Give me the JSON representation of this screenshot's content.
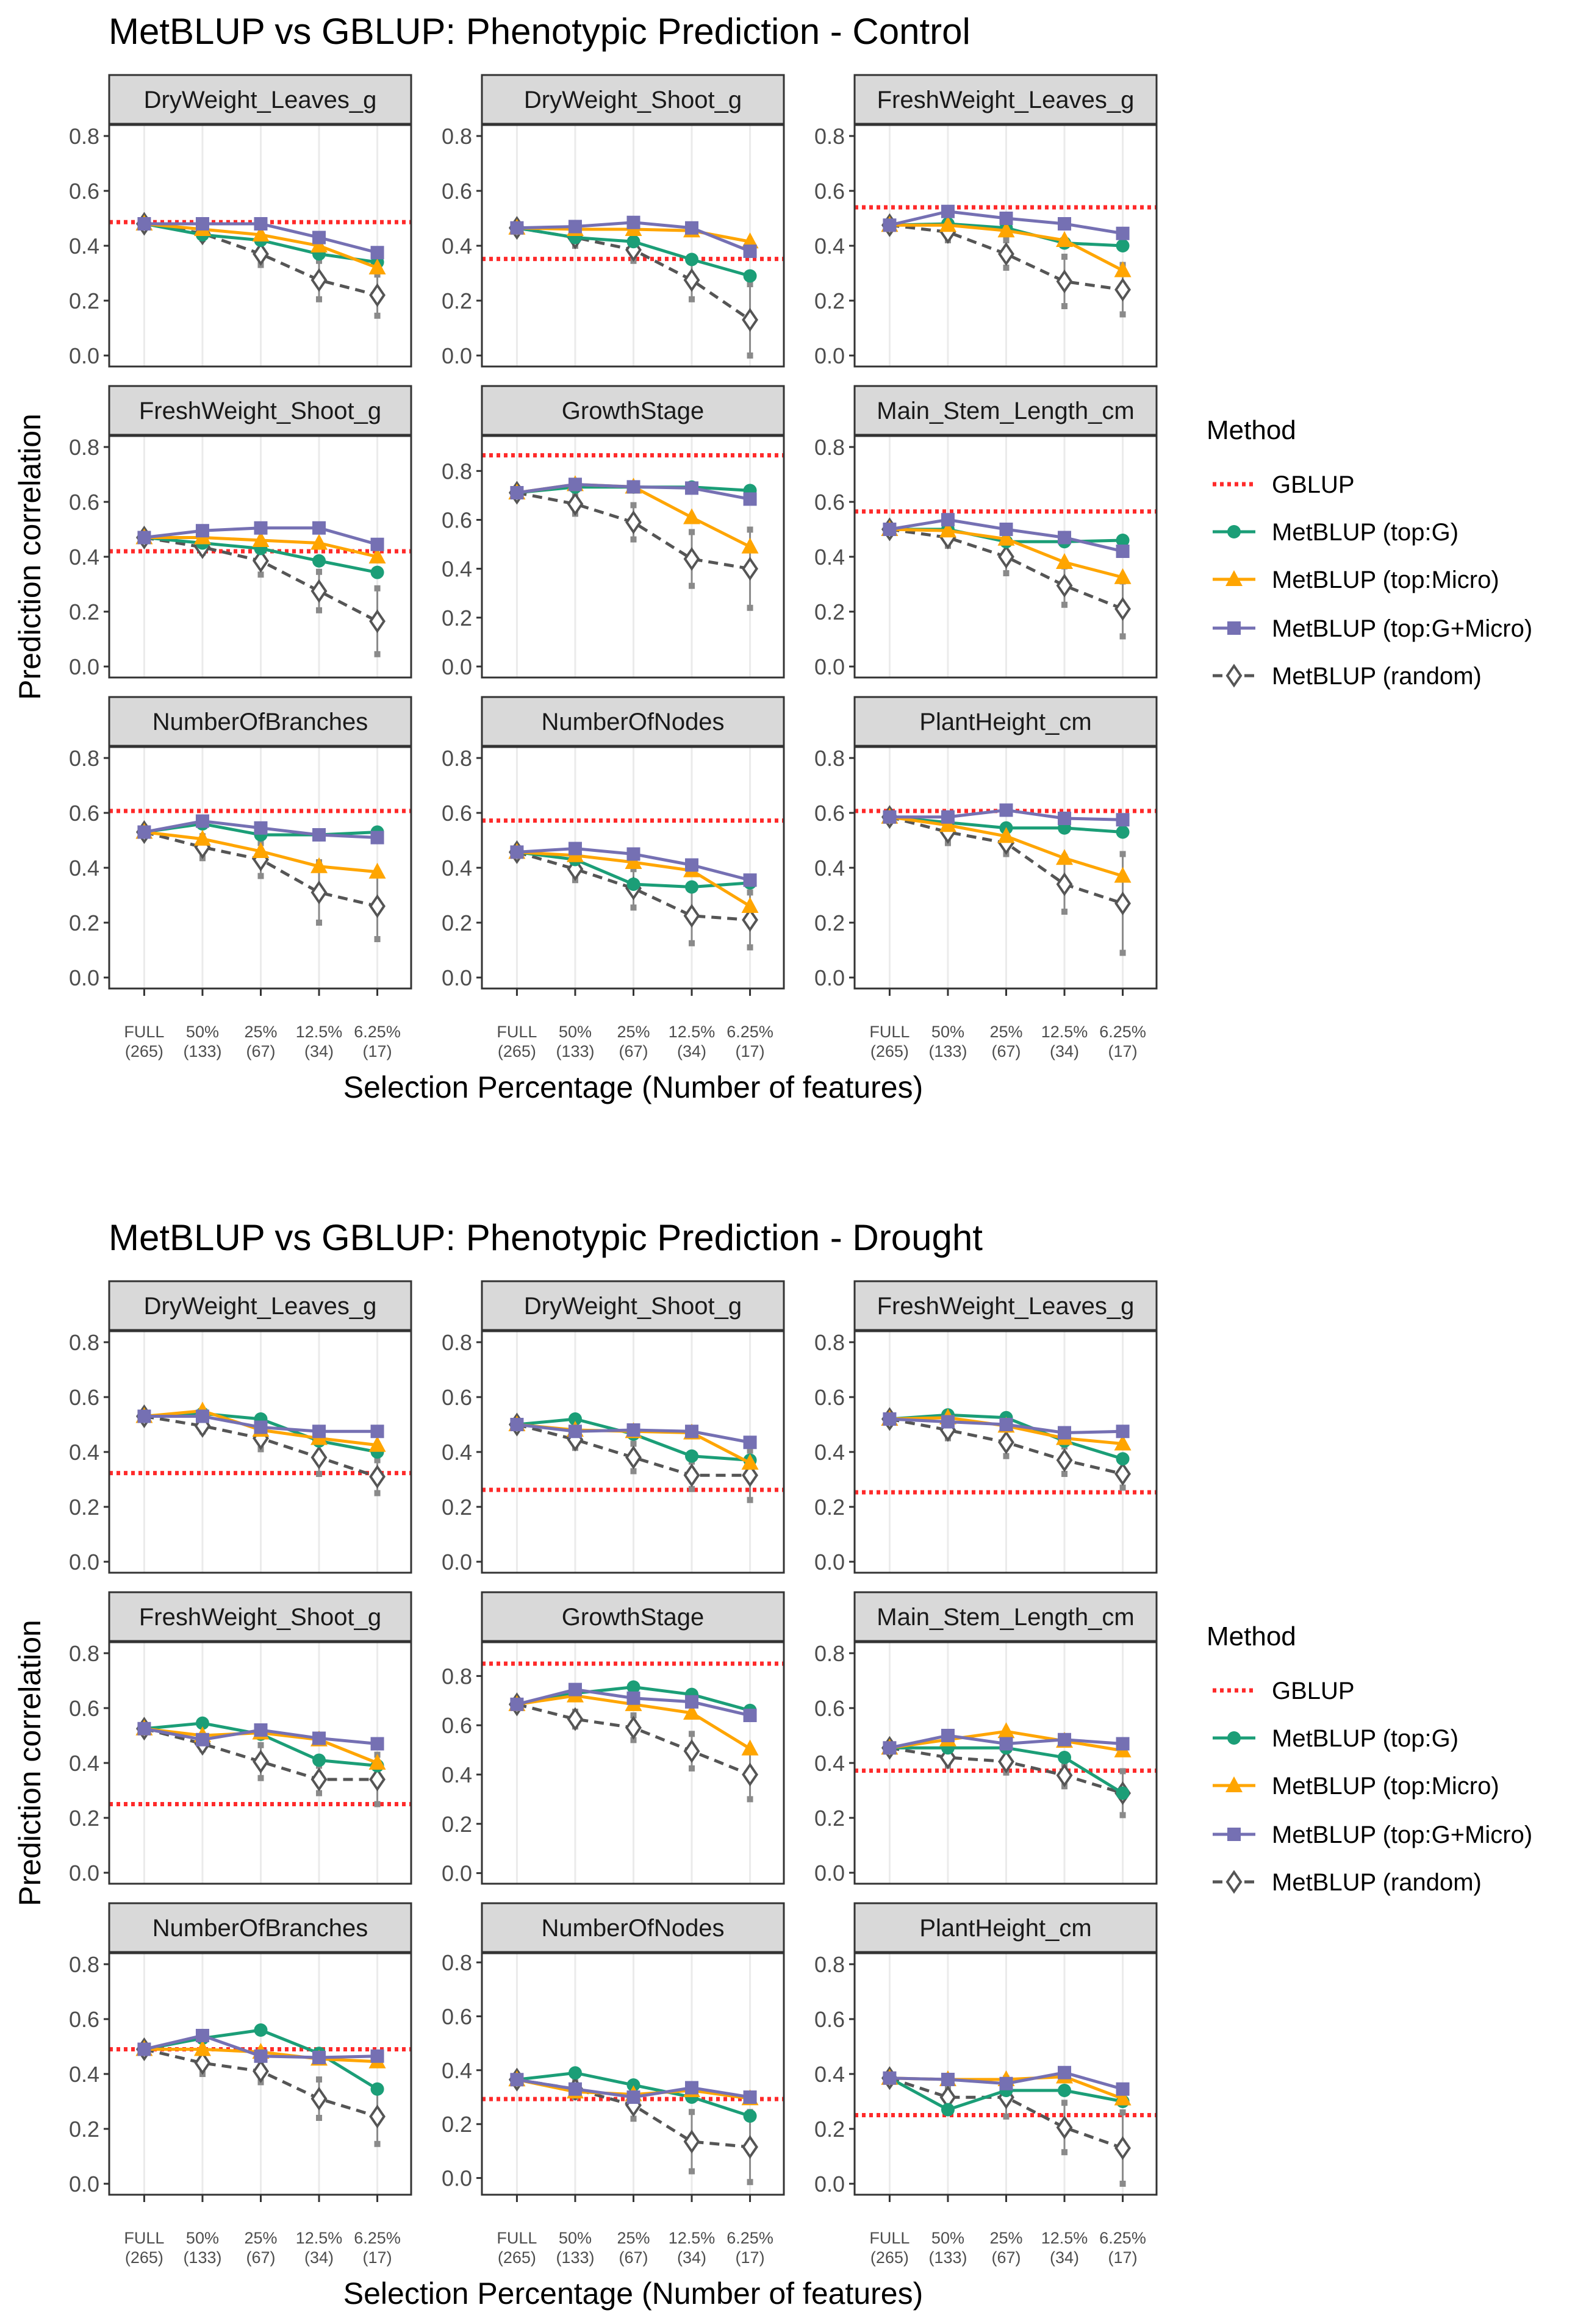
{
  "chart_data": [
    {
      "type": "line",
      "title": "MetBLUP vs GBLUP: Phenotypic Prediction - Control",
      "xlabel": "Selection Percentage (Number of features)",
      "ylabel": "Prediction correlation",
      "categories": [
        "FULL",
        "50%",
        "25%",
        "12.5%",
        "6.25%"
      ],
      "category_counts": [
        "(265)",
        "(133)",
        "(67)",
        "(34)",
        "(17)"
      ],
      "yticks": [
        0,
        0.2,
        0.4,
        0.6,
        0.8
      ],
      "ytick_labels": [
        "0.0",
        "0.2",
        "0.4",
        "0.6",
        "0.8"
      ],
      "grid": "vertical major only",
      "legend_title": "Method",
      "legend_position": "right",
      "series": [
        {
          "name": "GBLUP",
          "color": "#ff2a2a",
          "style": "dotted horizontal line"
        },
        {
          "name": "MetBLUP (top:G)",
          "color": "#1b9e77",
          "marker": "circle"
        },
        {
          "name": "MetBLUP (top:Micro)",
          "color": "#ffa500",
          "marker": "triangle"
        },
        {
          "name": "MetBLUP (top:G+Micro)",
          "color": "#7570b3",
          "marker": "square"
        },
        {
          "name": "MetBLUP (random)",
          "color": "#555555",
          "marker": "open diamond",
          "line": "dashed"
        }
      ],
      "panels": [
        {
          "name": "DryWeight_Leaves_g",
          "ylim": [
            -0.04,
            0.84
          ],
          "gblup": 0.486,
          "values": [
            [
              0.48,
              0.44,
              0.42,
              0.37,
              0.34
            ],
            [
              0.48,
              0.46,
              0.44,
              0.4,
              0.32
            ],
            [
              0.48,
              0.48,
              0.48,
              0.43,
              0.375
            ],
            [
              0.48,
              0.445,
              0.37,
              0.275,
              0.22
            ]
          ],
          "random_err": [
            0,
            0.02,
            0.04,
            0.07,
            0.075
          ]
        },
        {
          "name": "DryWeight_Shoot_g",
          "ylim": [
            -0.04,
            0.84
          ],
          "gblup": 0.352,
          "values": [
            [
              0.465,
              0.43,
              0.415,
              0.35,
              0.29
            ],
            [
              0.465,
              0.46,
              0.46,
              0.455,
              0.415
            ],
            [
              0.465,
              0.47,
              0.485,
              0.465,
              0.38
            ],
            [
              0.465,
              0.43,
              0.385,
              0.275,
              0.13
            ]
          ],
          "random_err": [
            0,
            0.03,
            0.04,
            0.07,
            0.13
          ]
        },
        {
          "name": "FreshWeight_Leaves_g",
          "ylim": [
            -0.04,
            0.84
          ],
          "gblup": 0.54,
          "values": [
            [
              0.475,
              0.48,
              0.465,
              0.41,
              0.4
            ],
            [
              0.475,
              0.475,
              0.455,
              0.42,
              0.31
            ],
            [
              0.475,
              0.525,
              0.5,
              0.48,
              0.445
            ],
            [
              0.475,
              0.45,
              0.37,
              0.27,
              0.24
            ]
          ],
          "random_err": [
            0,
            0.03,
            0.05,
            0.09,
            0.09
          ]
        },
        {
          "name": "FreshWeight_Shoot_g",
          "ylim": [
            -0.04,
            0.84
          ],
          "gblup": 0.42,
          "values": [
            [
              0.47,
              0.45,
              0.43,
              0.385,
              0.343
            ],
            [
              0.47,
              0.47,
              0.46,
              0.45,
              0.4
            ],
            [
              0.47,
              0.495,
              0.505,
              0.505,
              0.445
            ],
            [
              0.47,
              0.435,
              0.385,
              0.275,
              0.165
            ]
          ],
          "random_err": [
            0,
            0.02,
            0.05,
            0.07,
            0.12
          ]
        },
        {
          "name": "GrowthStage",
          "ylim": [
            -0.045,
            0.943
          ],
          "gblup": 0.864,
          "values": [
            [
              0.711,
              0.734,
              0.734,
              0.734,
              0.72
            ],
            [
              0.711,
              0.745,
              0.735,
              0.61,
              0.49
            ],
            [
              0.711,
              0.745,
              0.735,
              0.73,
              0.685
            ],
            [
              0.711,
              0.665,
              0.59,
              0.44,
              0.4
            ]
          ],
          "random_err": [
            0,
            0.04,
            0.07,
            0.11,
            0.16
          ]
        },
        {
          "name": "Main_Stem_Length_cm",
          "ylim": [
            -0.04,
            0.84
          ],
          "gblup": 0.565,
          "values": [
            [
              0.5,
              0.5,
              0.455,
              0.455,
              0.46
            ],
            [
              0.5,
              0.495,
              0.465,
              0.38,
              0.325
            ],
            [
              0.5,
              0.535,
              0.5,
              0.47,
              0.42
            ],
            [
              0.5,
              0.47,
              0.4,
              0.295,
              0.21
            ]
          ],
          "random_err": [
            0,
            0.03,
            0.06,
            0.07,
            0.1
          ]
        },
        {
          "name": "NumberOfBranches",
          "ylim": [
            -0.04,
            0.84
          ],
          "gblup": 0.607,
          "values": [
            [
              0.53,
              0.56,
              0.52,
              0.52,
              0.53
            ],
            [
              0.53,
              0.505,
              0.46,
              0.405,
              0.385
            ],
            [
              0.53,
              0.57,
              0.545,
              0.52,
              0.51
            ],
            [
              0.53,
              0.475,
              0.43,
              0.31,
              0.26
            ]
          ],
          "random_err": [
            0,
            0.04,
            0.06,
            0.11,
            0.12
          ]
        },
        {
          "name": "NumberOfNodes",
          "ylim": [
            -0.04,
            0.84
          ],
          "gblup": 0.572,
          "values": [
            [
              0.457,
              0.43,
              0.34,
              0.33,
              0.345
            ],
            [
              0.457,
              0.445,
              0.42,
              0.39,
              0.26
            ],
            [
              0.457,
              0.47,
              0.45,
              0.41,
              0.355
            ],
            [
              0.457,
              0.395,
              0.325,
              0.225,
              0.21
            ]
          ],
          "random_err": [
            0,
            0.04,
            0.07,
            0.1,
            0.1
          ]
        },
        {
          "name": "PlantHeight_cm",
          "ylim": [
            -0.04,
            0.84
          ],
          "gblup": 0.607,
          "values": [
            [
              0.585,
              0.565,
              0.545,
              0.545,
              0.53
            ],
            [
              0.585,
              0.555,
              0.515,
              0.435,
              0.37
            ],
            [
              0.585,
              0.585,
              0.61,
              0.58,
              0.575
            ],
            [
              0.585,
              0.53,
              0.49,
              0.34,
              0.27
            ]
          ],
          "random_err": [
            0,
            0.04,
            0.04,
            0.1,
            0.18
          ]
        }
      ]
    },
    {
      "type": "line",
      "title": "MetBLUP vs GBLUP: Phenotypic Prediction - Drought",
      "xlabel": "Selection Percentage (Number of features)",
      "ylabel": "Prediction correlation",
      "categories": [
        "FULL",
        "50%",
        "25%",
        "12.5%",
        "6.25%"
      ],
      "category_counts": [
        "(265)",
        "(133)",
        "(67)",
        "(34)",
        "(17)"
      ],
      "yticks": [
        0,
        0.2,
        0.4,
        0.6,
        0.8
      ],
      "ytick_labels": [
        "0.0",
        "0.2",
        "0.4",
        "0.6",
        "0.8"
      ],
      "grid": "vertical major only",
      "legend_title": "Method",
      "legend_position": "right",
      "series": [
        {
          "name": "GBLUP",
          "color": "#ff2a2a",
          "style": "dotted horizontal line"
        },
        {
          "name": "MetBLUP (top:G)",
          "color": "#1b9e77",
          "marker": "circle"
        },
        {
          "name": "MetBLUP (top:Micro)",
          "color": "#ffa500",
          "marker": "triangle"
        },
        {
          "name": "MetBLUP (top:G+Micro)",
          "color": "#7570b3",
          "marker": "square"
        },
        {
          "name": "MetBLUP (random)",
          "color": "#555555",
          "marker": "open diamond",
          "line": "dashed"
        }
      ],
      "panels": [
        {
          "name": "DryWeight_Leaves_g",
          "ylim": [
            -0.04,
            0.84
          ],
          "gblup": 0.323,
          "values": [
            [
              0.53,
              0.54,
              0.52,
              0.44,
              0.4
            ],
            [
              0.53,
              0.55,
              0.48,
              0.45,
              0.425
            ],
            [
              0.53,
              0.53,
              0.49,
              0.475,
              0.475
            ],
            [
              0.53,
              0.495,
              0.45,
              0.38,
              0.31
            ]
          ],
          "random_err": [
            0,
            0.02,
            0.04,
            0.06,
            0.06
          ]
        },
        {
          "name": "DryWeight_Shoot_g",
          "ylim": [
            -0.04,
            0.84
          ],
          "gblup": 0.262,
          "values": [
            [
              0.5,
              0.52,
              0.465,
              0.385,
              0.37
            ],
            [
              0.5,
              0.48,
              0.475,
              0.47,
              0.36
            ],
            [
              0.5,
              0.475,
              0.48,
              0.475,
              0.435
            ],
            [
              0.5,
              0.445,
              0.38,
              0.315,
              0.315
            ]
          ],
          "random_err": [
            0,
            0.03,
            0.05,
            0.05,
            0.09
          ]
        },
        {
          "name": "FreshWeight_Leaves_g",
          "ylim": [
            -0.04,
            0.84
          ],
          "gblup": 0.253,
          "values": [
            [
              0.52,
              0.535,
              0.525,
              0.44,
              0.375
            ],
            [
              0.52,
              0.525,
              0.495,
              0.45,
              0.43
            ],
            [
              0.52,
              0.51,
              0.5,
              0.47,
              0.475
            ],
            [
              0.52,
              0.48,
              0.435,
              0.37,
              0.32
            ]
          ],
          "random_err": [
            0,
            0.03,
            0.05,
            0.05,
            0.05
          ]
        },
        {
          "name": "FreshWeight_Shoot_g",
          "ylim": [
            -0.04,
            0.84
          ],
          "gblup": 0.25,
          "values": [
            [
              0.525,
              0.545,
              0.505,
              0.41,
              0.39
            ],
            [
              0.525,
              0.5,
              0.51,
              0.485,
              0.4
            ],
            [
              0.525,
              0.485,
              0.52,
              0.49,
              0.47
            ],
            [
              0.525,
              0.47,
              0.405,
              0.34,
              0.34
            ]
          ],
          "random_err": [
            0,
            0.02,
            0.06,
            0.05,
            0.09
          ]
        },
        {
          "name": "GrowthStage",
          "ylim": [
            -0.043,
            0.937
          ],
          "gblup": 0.85,
          "values": [
            [
              0.685,
              0.73,
              0.755,
              0.725,
              0.66
            ],
            [
              0.685,
              0.72,
              0.685,
              0.65,
              0.505
            ],
            [
              0.685,
              0.745,
              0.71,
              0.695,
              0.64
            ],
            [
              0.685,
              0.625,
              0.59,
              0.495,
              0.4
            ]
          ],
          "random_err": [
            0,
            0.03,
            0.05,
            0.07,
            0.1
          ]
        },
        {
          "name": "Main_Stem_Length_cm",
          "ylim": [
            -0.04,
            0.84
          ],
          "gblup": 0.372,
          "values": [
            [
              0.455,
              0.455,
              0.455,
              0.42,
              0.29
            ],
            [
              0.455,
              0.485,
              0.515,
              0.48,
              0.445
            ],
            [
              0.455,
              0.5,
              0.47,
              0.485,
              0.47
            ],
            [
              0.455,
              0.42,
              0.405,
              0.355,
              0.29
            ]
          ],
          "random_err": [
            0,
            0.03,
            0.04,
            0.04,
            0.08
          ]
        },
        {
          "name": "NumberOfBranches",
          "ylim": [
            -0.04,
            0.84
          ],
          "gblup": 0.49,
          "values": [
            [
              0.49,
              0.53,
              0.56,
              0.475,
              0.345
            ],
            [
              0.49,
              0.49,
              0.48,
              0.455,
              0.445
            ],
            [
              0.49,
              0.54,
              0.465,
              0.46,
              0.465
            ],
            [
              0.49,
              0.44,
              0.41,
              0.31,
              0.245
            ]
          ],
          "random_err": [
            0,
            0.04,
            0.04,
            0.07,
            0.1
          ]
        },
        {
          "name": "NumberOfNodes",
          "ylim": [
            -0.062,
            0.834
          ],
          "gblup": 0.293,
          "values": [
            [
              0.365,
              0.39,
              0.345,
              0.3,
              0.23
            ],
            [
              0.365,
              0.32,
              0.31,
              0.325,
              0.295
            ],
            [
              0.365,
              0.33,
              0.3,
              0.335,
              0.3
            ],
            [
              0.365,
              0.33,
              0.27,
              0.135,
              0.115
            ]
          ],
          "random_err": [
            0,
            0.03,
            0.05,
            0.11,
            0.13
          ]
        },
        {
          "name": "PlantHeight_cm",
          "ylim": [
            -0.04,
            0.84
          ],
          "gblup": 0.25,
          "values": [
            [
              0.385,
              0.27,
              0.34,
              0.34,
              0.3
            ],
            [
              0.385,
              0.38,
              0.38,
              0.39,
              0.31
            ],
            [
              0.385,
              0.38,
              0.365,
              0.405,
              0.345
            ],
            [
              0.385,
              0.315,
              0.315,
              0.205,
              0.13
            ]
          ],
          "random_err": [
            0,
            0.03,
            0.07,
            0.09,
            0.13
          ]
        }
      ]
    }
  ]
}
